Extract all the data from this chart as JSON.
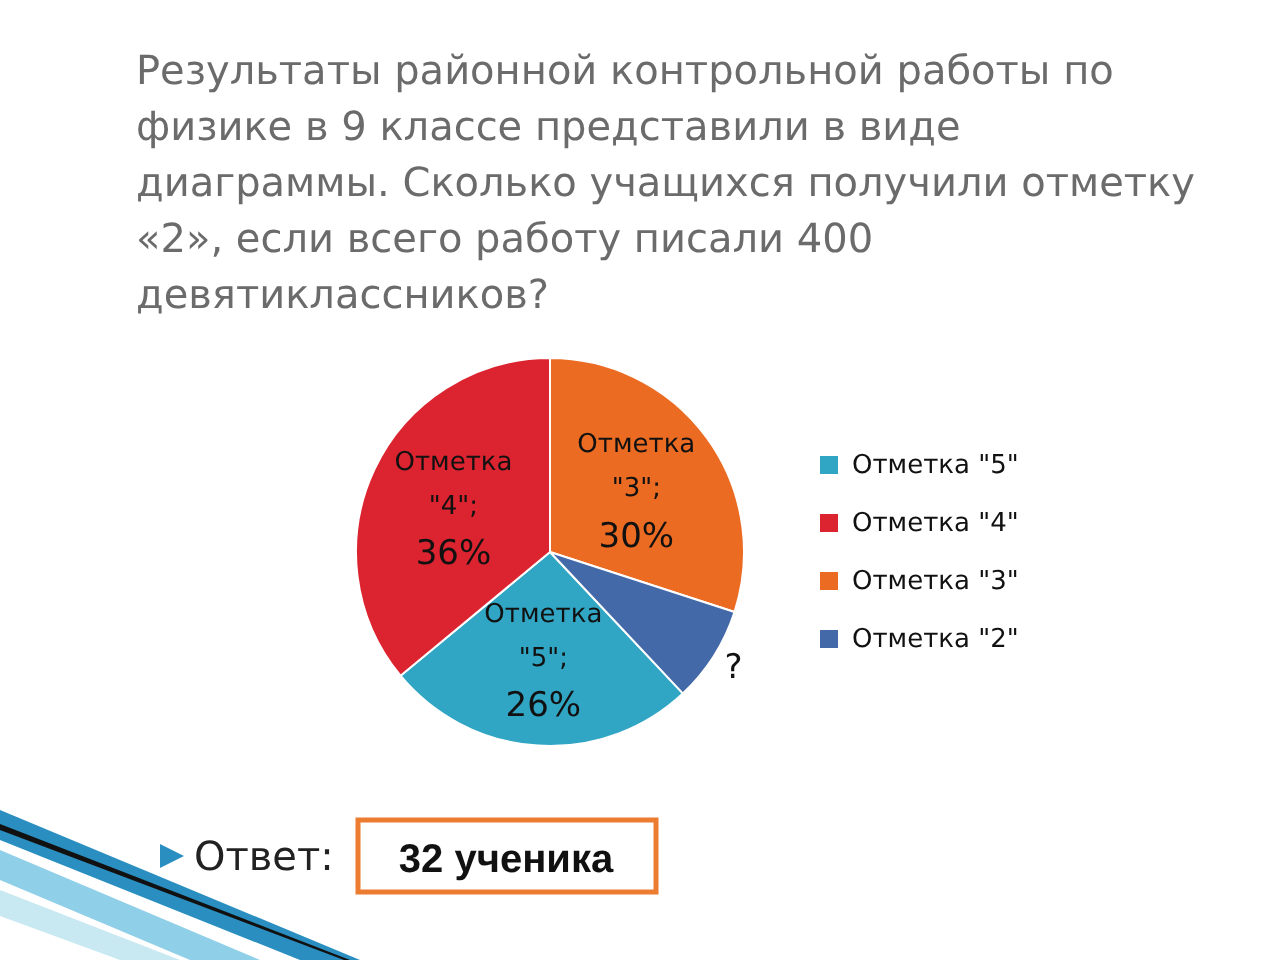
{
  "chart_data": {
    "type": "pie",
    "title": "Результаты районной контрольной работы по физике в 9 классе представили в виде диаграммы. Сколько учащихся получили отметку «2», если всего работу писали 400 девятиклассников?",
    "categories": [
      "Отметка \"5\"",
      "Отметка \"4\"",
      "Отметка \"3\"",
      "Отметка \"2\""
    ],
    "values": [
      26,
      36,
      30,
      8
    ],
    "colors": [
      "#31a6c4",
      "#dc2430",
      "#ec6b22",
      "#4469a8"
    ],
    "value_labels": [
      "Отметка \"5\"; 26%",
      "Отметка \"4\"; 36%",
      "Отметка \"3\"; 30%",
      "?"
    ],
    "legend": "right",
    "annotations": [
      "Ответ:",
      "32 ученика"
    ]
  }
}
